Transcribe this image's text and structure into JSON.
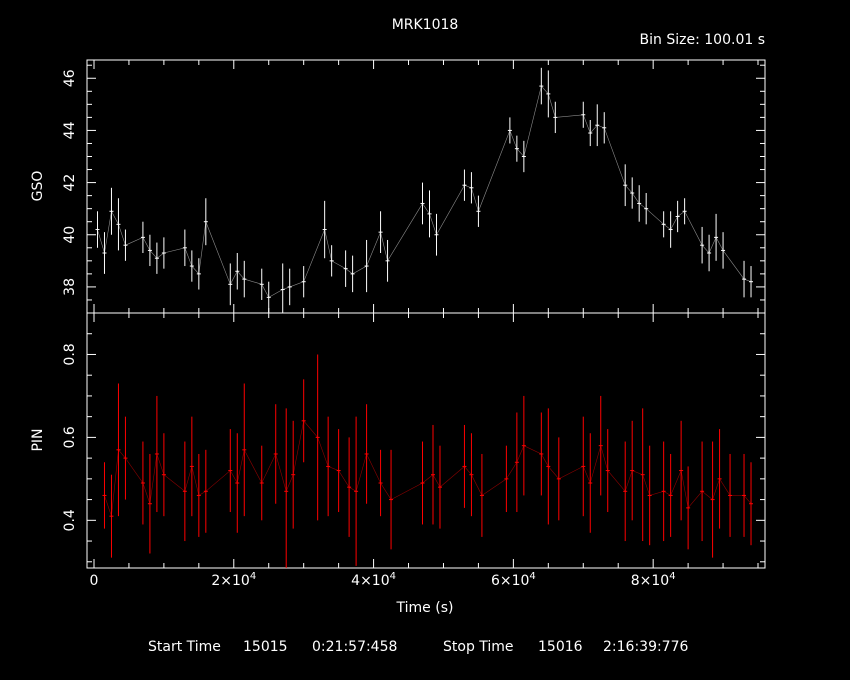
{
  "chart_data": [
    {
      "type": "line",
      "panel": "top",
      "title": "MRK1018",
      "subtitle": "Bin Size: 100.01 s",
      "ylabel": "GSO",
      "xlabel": "",
      "xlim": [
        -1000,
        96000
      ],
      "ylim": [
        37.0,
        46.7
      ],
      "yticks": [
        38,
        40,
        42,
        44,
        46
      ],
      "color": "#ffffff",
      "series": [
        {
          "x": [
            500,
            1500,
            2500,
            3500,
            4500,
            7000,
            8000,
            9000,
            10000,
            13000,
            14000,
            15000,
            16000,
            19500,
            20500,
            21500,
            24000,
            25000,
            27000,
            28000,
            30000,
            33000,
            34000,
            36000,
            37000,
            39000,
            41000,
            42000,
            47000,
            48000,
            49000,
            53000,
            54000,
            55000,
            59500,
            60500,
            61500,
            64000,
            65000,
            66000,
            70000,
            71000,
            72000,
            73000,
            76000,
            77000,
            78000,
            79000,
            81500,
            82500,
            83500,
            84500,
            87000,
            88000,
            89000,
            90000,
            93000,
            94000
          ],
          "y": [
            40.2,
            39.3,
            40.9,
            40.4,
            39.6,
            39.9,
            39.4,
            39.1,
            39.3,
            39.5,
            38.8,
            38.5,
            40.5,
            38.1,
            38.6,
            38.3,
            38.1,
            37.6,
            37.9,
            38.0,
            38.2,
            40.2,
            39.0,
            38.7,
            38.5,
            38.8,
            40.1,
            39.0,
            41.2,
            40.8,
            40.0,
            41.9,
            41.8,
            40.9,
            44.0,
            43.3,
            43.0,
            45.7,
            45.4,
            44.5,
            44.6,
            43.9,
            44.2,
            44.1,
            41.9,
            41.6,
            41.2,
            41.0,
            40.4,
            40.2,
            40.7,
            40.9,
            39.6,
            39.3,
            39.9,
            39.4,
            38.3,
            38.2
          ],
          "err": [
            0.7,
            0.8,
            0.9,
            1.0,
            0.6,
            0.6,
            0.6,
            0.6,
            0.6,
            0.7,
            0.6,
            0.6,
            0.9,
            0.8,
            0.7,
            0.7,
            0.6,
            0.6,
            1.0,
            0.7,
            0.6,
            1.1,
            0.6,
            0.7,
            0.7,
            1.0,
            0.8,
            0.8,
            0.8,
            0.9,
            0.8,
            0.6,
            0.6,
            0.6,
            0.5,
            0.5,
            0.6,
            0.7,
            0.9,
            0.6,
            0.5,
            0.5,
            0.8,
            0.6,
            0.8,
            0.6,
            0.7,
            0.6,
            0.5,
            0.7,
            0.6,
            0.5,
            0.7,
            0.7,
            0.9,
            0.7,
            0.7,
            0.6
          ]
        }
      ]
    },
    {
      "type": "line",
      "panel": "bottom",
      "ylabel": "PIN",
      "xlabel": "Time (s)",
      "xlim": [
        -1000,
        96000
      ],
      "ylim": [
        0.285,
        0.9
      ],
      "yticks": [
        0.4,
        0.6,
        0.8
      ],
      "xticks": [
        0,
        20000,
        40000,
        60000,
        80000
      ],
      "xtick_labels": [
        {
          "base": "0",
          "exp": ""
        },
        {
          "base": "2×10",
          "exp": "4"
        },
        {
          "base": "4×10",
          "exp": "4"
        },
        {
          "base": "6×10",
          "exp": "4"
        },
        {
          "base": "8×10",
          "exp": "4"
        }
      ],
      "color": "#ff0000",
      "series": [
        {
          "x": [
            1500,
            2500,
            3500,
            4500,
            7000,
            8000,
            9000,
            10000,
            13000,
            14000,
            15000,
            16000,
            19500,
            20500,
            21500,
            24000,
            26000,
            27500,
            28500,
            30000,
            32000,
            33500,
            35000,
            36500,
            37500,
            39000,
            41000,
            42500,
            47000,
            48500,
            49500,
            53000,
            54000,
            55500,
            59000,
            60500,
            61500,
            64000,
            65000,
            66500,
            70000,
            71000,
            72500,
            73500,
            76000,
            77000,
            78500,
            79500,
            81500,
            82500,
            84000,
            85000,
            87000,
            88500,
            89500,
            91000,
            93000,
            94000
          ],
          "y": [
            0.46,
            0.41,
            0.57,
            0.55,
            0.49,
            0.44,
            0.56,
            0.51,
            0.47,
            0.53,
            0.46,
            0.47,
            0.52,
            0.49,
            0.57,
            0.49,
            0.56,
            0.47,
            0.51,
            0.64,
            0.6,
            0.53,
            0.52,
            0.48,
            0.47,
            0.56,
            0.49,
            0.45,
            0.49,
            0.51,
            0.48,
            0.53,
            0.51,
            0.46,
            0.5,
            0.54,
            0.58,
            0.56,
            0.53,
            0.5,
            0.53,
            0.49,
            0.58,
            0.52,
            0.47,
            0.52,
            0.51,
            0.46,
            0.47,
            0.46,
            0.52,
            0.43,
            0.47,
            0.45,
            0.5,
            0.46,
            0.46,
            0.44
          ],
          "err": [
            0.08,
            0.1,
            0.16,
            0.1,
            0.1,
            0.12,
            0.14,
            0.1,
            0.12,
            0.12,
            0.1,
            0.1,
            0.1,
            0.12,
            0.16,
            0.09,
            0.12,
            0.2,
            0.13,
            0.1,
            0.2,
            0.12,
            0.1,
            0.12,
            0.18,
            0.12,
            0.08,
            0.12,
            0.1,
            0.12,
            0.1,
            0.1,
            0.1,
            0.1,
            0.08,
            0.12,
            0.12,
            0.1,
            0.14,
            0.1,
            0.12,
            0.12,
            0.12,
            0.1,
            0.12,
            0.12,
            0.16,
            0.12,
            0.12,
            0.1,
            0.12,
            0.1,
            0.12,
            0.14,
            0.12,
            0.1,
            0.1,
            0.1
          ]
        }
      ]
    }
  ],
  "footer": {
    "start_label": "Start Time",
    "start_day": "15015",
    "start_time": "0:21:57:458",
    "stop_label": "Stop Time",
    "stop_day": "15016",
    "stop_time": "2:16:39:776"
  }
}
